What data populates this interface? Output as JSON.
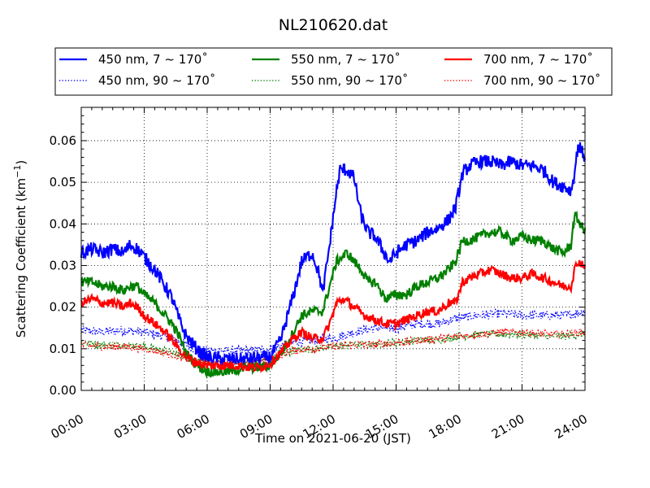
{
  "chart_data": {
    "type": "line",
    "title": "NL210620.dat",
    "xlabel": "Time on 2021-06-20 (JST)",
    "ylabel_main": "Scattering Coefficient (km",
    "ylabel_sup": "−1",
    "ylabel_end": ")",
    "xlim": [
      "00:00",
      "24:00"
    ],
    "ylim": [
      0,
      0.068
    ],
    "x_ticks": [
      "00:00",
      "03:00",
      "06:00",
      "09:00",
      "12:00",
      "15:00",
      "18:00",
      "21:00",
      "24:00"
    ],
    "y_ticks": [
      "0.00",
      "0.01",
      "0.02",
      "0.03",
      "0.04",
      "0.05",
      "0.06"
    ],
    "grid": true,
    "legend_position": "top",
    "series": [
      {
        "name": "450 nm, 7 ~ 170˚",
        "color": "#0000ff",
        "style": "solid",
        "noise": 0.0016,
        "points": [
          [
            "00:00",
            0.033
          ],
          [
            "00:30",
            0.034
          ],
          [
            "01:00",
            0.033
          ],
          [
            "01:30",
            0.034
          ],
          [
            "02:00",
            0.033
          ],
          [
            "02:20",
            0.035
          ],
          [
            "02:40",
            0.034
          ],
          [
            "03:00",
            0.032
          ],
          [
            "03:30",
            0.029
          ],
          [
            "04:00",
            0.025
          ],
          [
            "04:20",
            0.022
          ],
          [
            "04:40",
            0.017
          ],
          [
            "05:00",
            0.013
          ],
          [
            "05:20",
            0.011
          ],
          [
            "05:40",
            0.009
          ],
          [
            "06:00",
            0.008
          ],
          [
            "06:30",
            0.0075
          ],
          [
            "07:00",
            0.0075
          ],
          [
            "07:30",
            0.0075
          ],
          [
            "08:00",
            0.0075
          ],
          [
            "08:30",
            0.0078
          ],
          [
            "09:00",
            0.008
          ],
          [
            "09:30",
            0.012
          ],
          [
            "09:50",
            0.018
          ],
          [
            "10:10",
            0.024
          ],
          [
            "10:30",
            0.031
          ],
          [
            "11:00",
            0.033
          ],
          [
            "11:20",
            0.028
          ],
          [
            "11:30",
            0.023
          ],
          [
            "11:50",
            0.035
          ],
          [
            "12:10",
            0.048
          ],
          [
            "12:20",
            0.053
          ],
          [
            "12:40",
            0.053
          ],
          [
            "13:00",
            0.051
          ],
          [
            "13:20",
            0.042
          ],
          [
            "13:40",
            0.038
          ],
          [
            "14:00",
            0.037
          ],
          [
            "14:20",
            0.034
          ],
          [
            "14:40",
            0.031
          ],
          [
            "15:00",
            0.033
          ],
          [
            "15:30",
            0.035
          ],
          [
            "16:00",
            0.036
          ],
          [
            "16:30",
            0.038
          ],
          [
            "17:00",
            0.039
          ],
          [
            "17:30",
            0.041
          ],
          [
            "17:50",
            0.044
          ],
          [
            "18:10",
            0.052
          ],
          [
            "18:30",
            0.054
          ],
          [
            "19:00",
            0.055
          ],
          [
            "19:30",
            0.055
          ],
          [
            "20:00",
            0.054
          ],
          [
            "20:30",
            0.055
          ],
          [
            "21:00",
            0.054
          ],
          [
            "21:30",
            0.054
          ],
          [
            "22:00",
            0.053
          ],
          [
            "22:30",
            0.05
          ],
          [
            "23:00",
            0.049
          ],
          [
            "23:20",
            0.048
          ],
          [
            "23:30",
            0.052
          ],
          [
            "23:40",
            0.059
          ],
          [
            "24:00",
            0.056
          ]
        ]
      },
      {
        "name": "550 nm, 7 ~ 170˚",
        "color": "#008000",
        "style": "solid",
        "noise": 0.0012,
        "points": [
          [
            "00:00",
            0.026
          ],
          [
            "00:30",
            0.026
          ],
          [
            "01:00",
            0.025
          ],
          [
            "01:30",
            0.025
          ],
          [
            "02:00",
            0.024
          ],
          [
            "02:20",
            0.025
          ],
          [
            "02:40",
            0.025
          ],
          [
            "03:00",
            0.023
          ],
          [
            "03:30",
            0.021
          ],
          [
            "04:00",
            0.018
          ],
          [
            "04:20",
            0.016
          ],
          [
            "04:40",
            0.013
          ],
          [
            "05:00",
            0.009
          ],
          [
            "05:20",
            0.007
          ],
          [
            "05:40",
            0.0055
          ],
          [
            "06:00",
            0.0045
          ],
          [
            "06:30",
            0.0045
          ],
          [
            "07:00",
            0.0045
          ],
          [
            "07:30",
            0.005
          ],
          [
            "08:00",
            0.0055
          ],
          [
            "08:30",
            0.0055
          ],
          [
            "09:00",
            0.006
          ],
          [
            "09:30",
            0.009
          ],
          [
            "10:00",
            0.013
          ],
          [
            "10:30",
            0.018
          ],
          [
            "11:00",
            0.019
          ],
          [
            "11:30",
            0.019
          ],
          [
            "11:50",
            0.025
          ],
          [
            "12:10",
            0.031
          ],
          [
            "12:40",
            0.033
          ],
          [
            "13:00",
            0.031
          ],
          [
            "13:20",
            0.029
          ],
          [
            "13:40",
            0.026
          ],
          [
            "14:00",
            0.026
          ],
          [
            "14:30",
            0.022
          ],
          [
            "15:00",
            0.023
          ],
          [
            "15:30",
            0.023
          ],
          [
            "16:00",
            0.025
          ],
          [
            "16:30",
            0.026
          ],
          [
            "17:00",
            0.027
          ],
          [
            "17:30",
            0.029
          ],
          [
            "17:50",
            0.031
          ],
          [
            "18:10",
            0.036
          ],
          [
            "18:30",
            0.036
          ],
          [
            "19:00",
            0.037
          ],
          [
            "19:30",
            0.038
          ],
          [
            "20:00",
            0.038
          ],
          [
            "20:30",
            0.036
          ],
          [
            "21:00",
            0.037
          ],
          [
            "21:30",
            0.036
          ],
          [
            "22:00",
            0.036
          ],
          [
            "22:30",
            0.034
          ],
          [
            "23:00",
            0.033
          ],
          [
            "23:20",
            0.035
          ],
          [
            "23:30",
            0.042
          ],
          [
            "23:40",
            0.041
          ],
          [
            "24:00",
            0.038
          ]
        ]
      },
      {
        "name": "700 nm, 7 ~ 170˚",
        "color": "#ff0000",
        "style": "solid",
        "noise": 0.0011,
        "points": [
          [
            "00:00",
            0.021
          ],
          [
            "00:30",
            0.022
          ],
          [
            "01:00",
            0.021
          ],
          [
            "01:30",
            0.021
          ],
          [
            "02:00",
            0.02
          ],
          [
            "02:20",
            0.021
          ],
          [
            "02:40",
            0.02
          ],
          [
            "03:00",
            0.018
          ],
          [
            "03:30",
            0.016
          ],
          [
            "04:00",
            0.014
          ],
          [
            "04:20",
            0.012
          ],
          [
            "04:40",
            0.01
          ],
          [
            "05:00",
            0.008
          ],
          [
            "05:20",
            0.007
          ],
          [
            "05:40",
            0.0065
          ],
          [
            "06:00",
            0.006
          ],
          [
            "06:30",
            0.006
          ],
          [
            "07:00",
            0.006
          ],
          [
            "07:30",
            0.006
          ],
          [
            "08:00",
            0.0055
          ],
          [
            "08:30",
            0.0055
          ],
          [
            "09:00",
            0.0065
          ],
          [
            "09:30",
            0.009
          ],
          [
            "10:00",
            0.012
          ],
          [
            "10:30",
            0.014
          ],
          [
            "11:00",
            0.0125
          ],
          [
            "11:30",
            0.0125
          ],
          [
            "11:50",
            0.016
          ],
          [
            "12:10",
            0.021
          ],
          [
            "12:30",
            0.022
          ],
          [
            "13:00",
            0.02
          ],
          [
            "13:30",
            0.018
          ],
          [
            "14:00",
            0.017
          ],
          [
            "14:30",
            0.016
          ],
          [
            "15:00",
            0.016
          ],
          [
            "15:30",
            0.017
          ],
          [
            "16:00",
            0.018
          ],
          [
            "16:30",
            0.019
          ],
          [
            "17:00",
            0.019
          ],
          [
            "17:30",
            0.021
          ],
          [
            "17:50",
            0.021
          ],
          [
            "18:10",
            0.026
          ],
          [
            "18:30",
            0.027
          ],
          [
            "19:00",
            0.028
          ],
          [
            "19:30",
            0.029
          ],
          [
            "20:00",
            0.028
          ],
          [
            "20:30",
            0.027
          ],
          [
            "21:00",
            0.027
          ],
          [
            "21:30",
            0.028
          ],
          [
            "22:00",
            0.027
          ],
          [
            "22:30",
            0.026
          ],
          [
            "23:00",
            0.025
          ],
          [
            "23:20",
            0.025
          ],
          [
            "23:30",
            0.029
          ],
          [
            "23:40",
            0.031
          ],
          [
            "24:00",
            0.03
          ]
        ]
      },
      {
        "name": "450 nm, 90 ~ 170˚",
        "color": "#0000ff",
        "style": "dotted",
        "noise": 0.0011,
        "points": [
          [
            "00:00",
            0.0145
          ],
          [
            "01:00",
            0.014
          ],
          [
            "02:00",
            0.0145
          ],
          [
            "03:00",
            0.014
          ],
          [
            "04:00",
            0.013
          ],
          [
            "05:00",
            0.011
          ],
          [
            "05:30",
            0.0095
          ],
          [
            "06:00",
            0.0095
          ],
          [
            "07:00",
            0.0095
          ],
          [
            "08:00",
            0.0095
          ],
          [
            "09:00",
            0.01
          ],
          [
            "10:00",
            0.0115
          ],
          [
            "11:00",
            0.012
          ],
          [
            "12:00",
            0.0125
          ],
          [
            "13:00",
            0.014
          ],
          [
            "14:00",
            0.015
          ],
          [
            "15:00",
            0.015
          ],
          [
            "16:00",
            0.016
          ],
          [
            "17:00",
            0.016
          ],
          [
            "18:00",
            0.0175
          ],
          [
            "19:00",
            0.018
          ],
          [
            "20:00",
            0.0185
          ],
          [
            "21:00",
            0.018
          ],
          [
            "22:00",
            0.018
          ],
          [
            "23:00",
            0.018
          ],
          [
            "24:00",
            0.019
          ]
        ]
      },
      {
        "name": "550 nm, 90 ~ 170˚",
        "color": "#008000",
        "style": "dotted",
        "noise": 0.0009,
        "points": [
          [
            "00:00",
            0.0115
          ],
          [
            "01:00",
            0.011
          ],
          [
            "02:00",
            0.011
          ],
          [
            "03:00",
            0.0105
          ],
          [
            "04:00",
            0.0095
          ],
          [
            "05:00",
            0.008
          ],
          [
            "06:00",
            0.0065
          ],
          [
            "07:00",
            0.0065
          ],
          [
            "08:00",
            0.0065
          ],
          [
            "09:00",
            0.0075
          ],
          [
            "10:00",
            0.0095
          ],
          [
            "11:00",
            0.01
          ],
          [
            "12:00",
            0.0105
          ],
          [
            "13:00",
            0.011
          ],
          [
            "14:00",
            0.011
          ],
          [
            "15:00",
            0.0115
          ],
          [
            "16:00",
            0.012
          ],
          [
            "17:00",
            0.012
          ],
          [
            "18:00",
            0.013
          ],
          [
            "19:00",
            0.0135
          ],
          [
            "20:00",
            0.0135
          ],
          [
            "21:00",
            0.0135
          ],
          [
            "22:00",
            0.013
          ],
          [
            "23:00",
            0.013
          ],
          [
            "24:00",
            0.0135
          ]
        ]
      },
      {
        "name": "700 nm, 90 ~ 170˚",
        "color": "#ff0000",
        "style": "dotted",
        "noise": 0.0009,
        "points": [
          [
            "00:00",
            0.011
          ],
          [
            "01:00",
            0.0105
          ],
          [
            "02:00",
            0.0105
          ],
          [
            "03:00",
            0.01
          ],
          [
            "04:00",
            0.009
          ],
          [
            "05:00",
            0.0075
          ],
          [
            "06:00",
            0.0065
          ],
          [
            "07:00",
            0.0065
          ],
          [
            "08:00",
            0.0065
          ],
          [
            "09:00",
            0.0075
          ],
          [
            "10:00",
            0.0095
          ],
          [
            "11:00",
            0.01
          ],
          [
            "12:00",
            0.0105
          ],
          [
            "13:00",
            0.011
          ],
          [
            "14:00",
            0.011
          ],
          [
            "15:00",
            0.0115
          ],
          [
            "16:00",
            0.012
          ],
          [
            "17:00",
            0.0125
          ],
          [
            "18:00",
            0.013
          ],
          [
            "19:00",
            0.0135
          ],
          [
            "20:00",
            0.014
          ],
          [
            "21:00",
            0.014
          ],
          [
            "22:00",
            0.0135
          ],
          [
            "23:00",
            0.0135
          ],
          [
            "24:00",
            0.014
          ]
        ]
      }
    ]
  }
}
